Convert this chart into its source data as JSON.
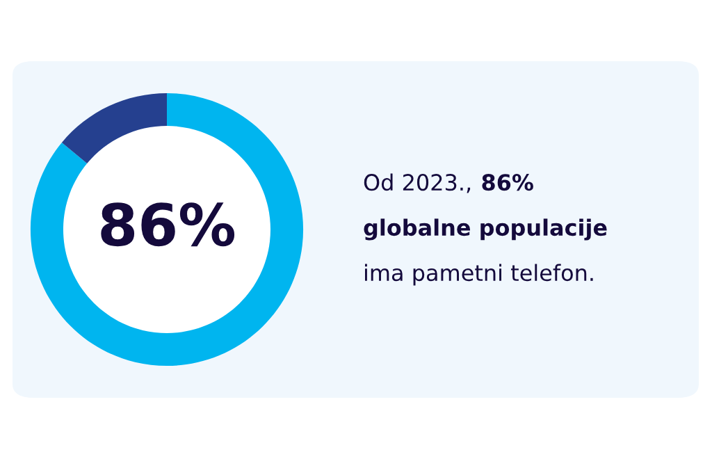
{
  "chart_data": {
    "type": "donut",
    "categories": [
      null,
      null
    ],
    "values": [
      86,
      14
    ],
    "colors": [
      "#00b5ef",
      "#25408f"
    ],
    "value_labels": [
      "86%",
      null
    ],
    "annotations": [
      "Od 2023.,",
      "86%",
      "globalne populacije",
      "ima pametni telefon."
    ]
  }
}
